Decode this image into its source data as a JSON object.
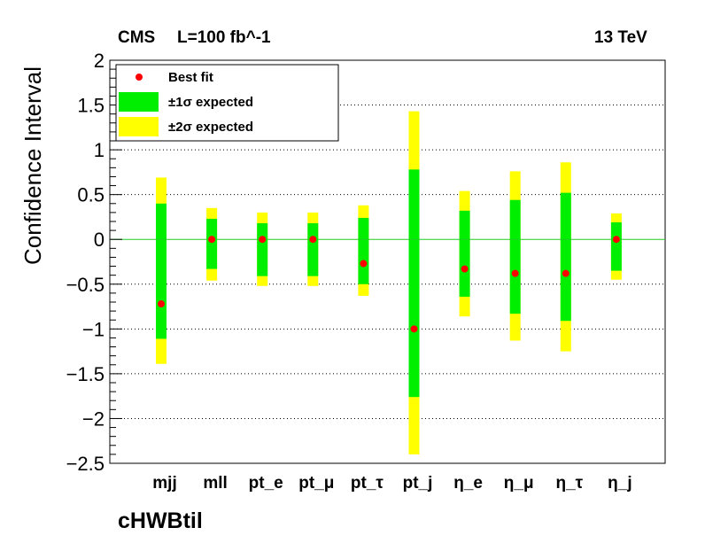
{
  "header": {
    "experiment": "CMS",
    "lumi": "L=100 fb^-1",
    "energy": "13 TeV"
  },
  "footer": {
    "label": "cHWBtil"
  },
  "chart_data": {
    "type": "scatter",
    "ylabel": "Confidence Interval",
    "xlabel": "",
    "ylim": [
      -2.5,
      2
    ],
    "yticks": [
      -2.5,
      -2,
      -1.5,
      -1,
      -0.5,
      0,
      0.5,
      1,
      1.5,
      2
    ],
    "ytick_labels": [
      "−2.5",
      "−2",
      "−1.5",
      "−1",
      "−0.5",
      "0",
      "0.5",
      "1",
      "1.5",
      "2"
    ],
    "grid": "horizontal dotted",
    "reference_line": 0,
    "legend": {
      "position": "top-left",
      "entries": [
        {
          "label": "Best fit",
          "kind": "marker",
          "color": "#ff0000"
        },
        {
          "label": "±1σ expected",
          "kind": "box",
          "color": "#00ee00"
        },
        {
          "label": "±2σ expected",
          "kind": "box",
          "color": "#ffff00"
        }
      ]
    },
    "categories": [
      "mjj",
      "mll",
      "pt_e",
      "pt_μ",
      "pt_τ",
      "pt_j",
      "η_e",
      "η_μ",
      "η_τ",
      "η_j"
    ],
    "best_fit": [
      -0.72,
      0.0,
      0.0,
      0.0,
      -0.27,
      -1.0,
      -0.33,
      -0.38,
      -0.38,
      0.0
    ],
    "one_sigma": [
      [
        -1.11,
        0.4
      ],
      [
        -0.33,
        0.23
      ],
      [
        -0.41,
        0.18
      ],
      [
        -0.41,
        0.18
      ],
      [
        -0.5,
        0.24
      ],
      [
        -1.76,
        0.78
      ],
      [
        -0.64,
        0.32
      ],
      [
        -0.83,
        0.44
      ],
      [
        -0.91,
        0.52
      ],
      [
        -0.35,
        0.19
      ]
    ],
    "two_sigma": [
      [
        -1.39,
        0.69
      ],
      [
        -0.46,
        0.35
      ],
      [
        -0.52,
        0.3
      ],
      [
        -0.52,
        0.3
      ],
      [
        -0.63,
        0.38
      ],
      [
        -2.4,
        1.43
      ],
      [
        -0.86,
        0.54
      ],
      [
        -1.13,
        0.76
      ],
      [
        -1.25,
        0.86
      ],
      [
        -0.45,
        0.29
      ]
    ],
    "colors": {
      "best_fit": "#ff0000",
      "one_sigma": "#00ee00",
      "two_sigma": "#ffff00",
      "zero_line": "#22cc22"
    }
  }
}
